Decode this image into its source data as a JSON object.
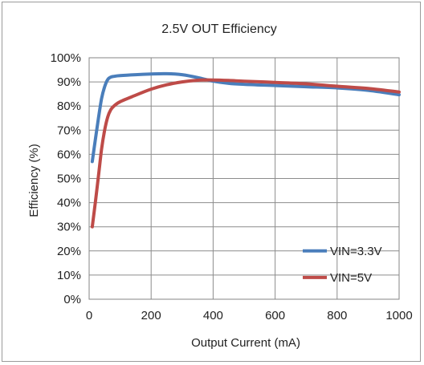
{
  "chart_data": {
    "type": "line",
    "title": "2.5V OUT Efficiency",
    "xlabel": "Output Current (mA)",
    "ylabel": "Efficiency (%)",
    "xlim": [
      0,
      1000
    ],
    "ylim": [
      0,
      100
    ],
    "x_ticks": [
      0,
      200,
      400,
      600,
      800,
      1000
    ],
    "y_ticks": [
      0,
      10,
      20,
      30,
      40,
      50,
      60,
      70,
      80,
      90,
      100
    ],
    "y_tick_labels": [
      "0%",
      "10%",
      "20%",
      "30%",
      "40%",
      "50%",
      "60%",
      "70%",
      "80%",
      "90%",
      "100%"
    ],
    "x_tick_labels": [
      "0",
      "200",
      "400",
      "600",
      "800",
      "1000"
    ],
    "grid": true,
    "legend_position": "bottom-right",
    "series": [
      {
        "name": "VIN=3.3V",
        "color": "#4a7ebb",
        "x": [
          10,
          20,
          30,
          40,
          50,
          60,
          70,
          80,
          100,
          150,
          200,
          250,
          300,
          350,
          400,
          450,
          500,
          600,
          700,
          800,
          900,
          1000
        ],
        "y": [
          57,
          66,
          75,
          83,
          88,
          91,
          92,
          92.3,
          92.6,
          93,
          93.3,
          93.4,
          93,
          91.8,
          90.3,
          89.4,
          89,
          88.5,
          88,
          87.5,
          86.5,
          84.7
        ]
      },
      {
        "name": "VIN=5V",
        "color": "#be4b48",
        "x": [
          10,
          20,
          30,
          40,
          50,
          60,
          70,
          80,
          100,
          150,
          200,
          250,
          300,
          350,
          400,
          450,
          500,
          600,
          700,
          800,
          900,
          1000
        ],
        "y": [
          30,
          40,
          51,
          62,
          70,
          75.5,
          78.5,
          80,
          81.8,
          84.5,
          87,
          88.8,
          90,
          90.7,
          90.8,
          90.6,
          90.3,
          89.8,
          89.2,
          88.2,
          87.3,
          85.8
        ]
      }
    ]
  }
}
